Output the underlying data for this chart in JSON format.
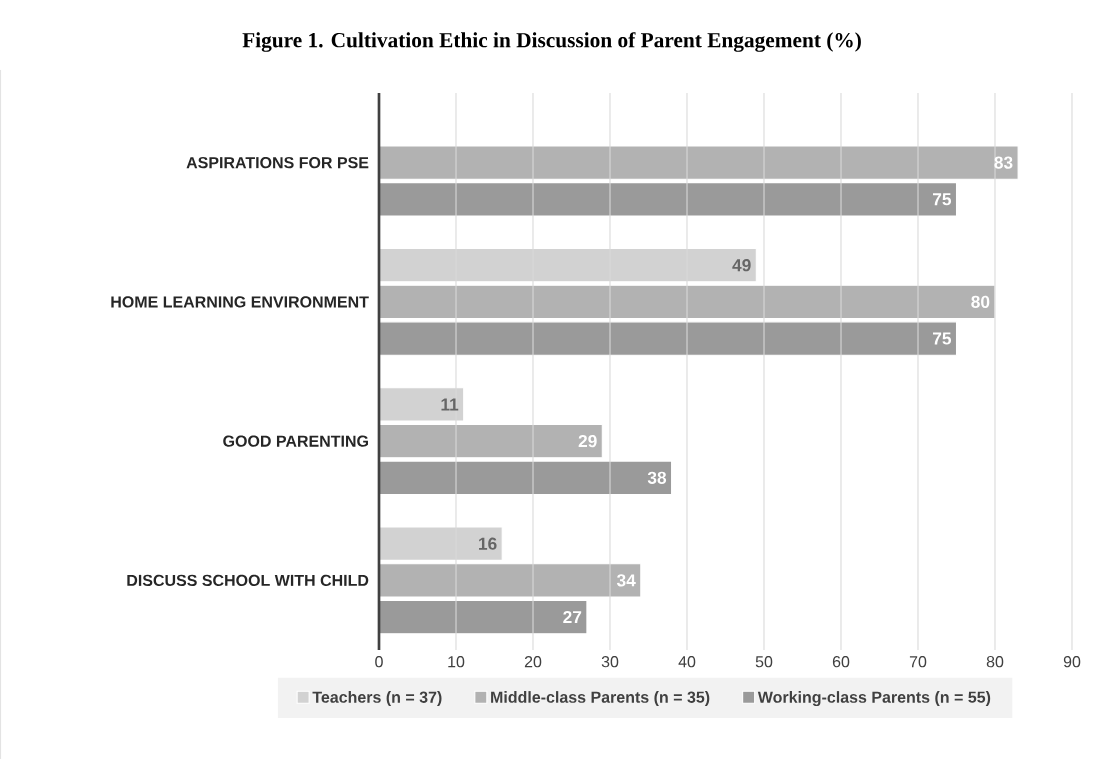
{
  "chart_data": {
    "type": "bar",
    "orientation": "horizontal",
    "title": "Figure 1. Cultivation Ethic in Discussion of Parent Engagement (%)",
    "categories": [
      "ASPIRATIONS FOR PSE",
      "HOME LEARNING ENVIRONMENT",
      "GOOD PARENTING",
      "DISCUSS SCHOOL WITH CHILD"
    ],
    "series": [
      {
        "name": "Teachers (n = 37)",
        "color": "#d2d2d2",
        "values": [
          null,
          49,
          11,
          16
        ]
      },
      {
        "name": "Middle-class Parents (n = 35)",
        "color": "#b2b2b2",
        "values": [
          83,
          80,
          29,
          34
        ]
      },
      {
        "name": "Working-class Parents (n = 55)",
        "color": "#9a9a9a",
        "values": [
          75,
          75,
          38,
          27
        ]
      }
    ],
    "xlim": [
      0,
      90
    ],
    "xticks": [
      0,
      10,
      20,
      30,
      40,
      50,
      60,
      70,
      80,
      90
    ],
    "grid": "x",
    "legend": "bottom",
    "data_labels": true
  }
}
